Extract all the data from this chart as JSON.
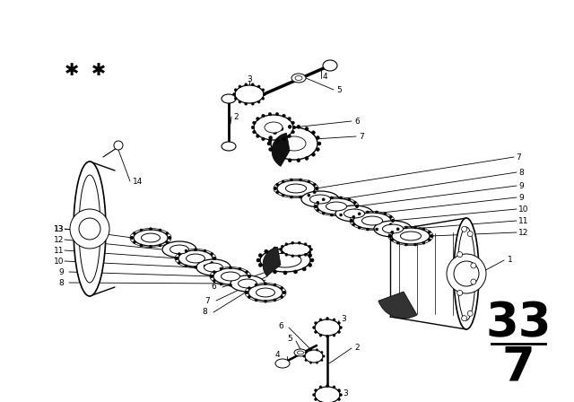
{
  "bg_color": "#ffffff",
  "line_color": "#000000",
  "fig_width": 6.4,
  "fig_height": 4.48,
  "dpi": 100,
  "page_number_top": "33",
  "page_number_bottom": "7",
  "stars_text": "* *"
}
